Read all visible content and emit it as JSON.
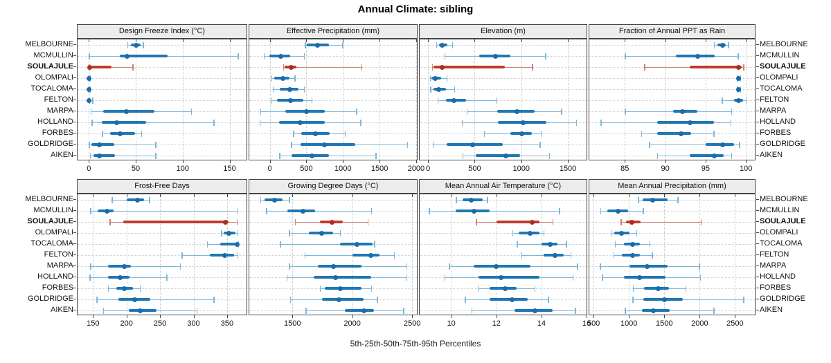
{
  "title": "Annual Climate: sibling",
  "caption": "5th-25th-50th-75th-95th Percentiles",
  "highlighted_site": "SOULAJULE",
  "colors": {
    "blue_dot": "#1b6ca8",
    "blue_thick": "#1f77b4",
    "blue_thin": "#7eb6d9",
    "red_dot": "#aa2e22",
    "red_thick": "#c0392b",
    "red_thin": "#d08076",
    "strip_bg": "#ececec",
    "panel_border": "#444444",
    "grid": "#c6c6c6"
  },
  "chart_data": {
    "type": "dot-whisker-trellis",
    "percentiles": [
      5,
      25,
      50,
      75,
      95
    ],
    "legend_note": "red series = highlighted site SOULAJULE, blue = other sites",
    "sites": [
      "MELBOURNE",
      "MCMULLIN",
      "SOULAJULE",
      "OLOMPALI",
      "TOCALOMA",
      "FELTON",
      "MARPA",
      "HOLLAND",
      "FORBES",
      "GOLDRIDGE",
      "AIKEN"
    ],
    "panels": [
      {
        "title": "Design Freeze Index (°C)",
        "row": 0,
        "col": 0,
        "domain": [
          -12,
          168
        ],
        "ticks": [
          0,
          50,
          100,
          150
        ],
        "series": [
          [
            41,
            45,
            50,
            55,
            58
          ],
          [
            0,
            33,
            41,
            84,
            159
          ],
          [
            0,
            0,
            1,
            24,
            47
          ],
          [
            0,
            0,
            0,
            0,
            1
          ],
          [
            0,
            0,
            0,
            0,
            1
          ],
          [
            0,
            0,
            0,
            1,
            4
          ],
          [
            2,
            15,
            40,
            70,
            109
          ],
          [
            3,
            14,
            30,
            61,
            133
          ],
          [
            14,
            23,
            33,
            49,
            56
          ],
          [
            0,
            3,
            11,
            27,
            71
          ],
          [
            1,
            5,
            11,
            28,
            71
          ]
        ]
      },
      {
        "title": "Effective Precipitation (mm)",
        "row": 0,
        "col": 1,
        "domain": [
          -280,
          2010
        ],
        "ticks": [
          0,
          500,
          1000,
          1500,
          2000
        ],
        "series": [
          [
            480,
            510,
            650,
            810,
            995
          ],
          [
            -85,
            -5,
            155,
            280,
            470
          ],
          [
            180,
            205,
            290,
            360,
            1255
          ],
          [
            20,
            65,
            180,
            270,
            340
          ],
          [
            40,
            140,
            270,
            395,
            470
          ],
          [
            10,
            95,
            280,
            460,
            575
          ],
          [
            -130,
            215,
            505,
            750,
            1185
          ],
          [
            -140,
            130,
            415,
            750,
            1240
          ],
          [
            320,
            425,
            620,
            815,
            1030
          ],
          [
            290,
            420,
            750,
            1165,
            1880
          ],
          [
            130,
            300,
            575,
            810,
            1450
          ]
        ]
      },
      {
        "title": "Elevation (m)",
        "row": 0,
        "col": 2,
        "domain": [
          -90,
          1700
        ],
        "ticks": [
          0,
          500,
          1000,
          1500
        ],
        "series": [
          [
            85,
            115,
            150,
            210,
            260
          ],
          [
            175,
            550,
            725,
            885,
            1260
          ],
          [
            40,
            60,
            150,
            820,
            1120
          ],
          [
            20,
            35,
            80,
            140,
            200
          ],
          [
            25,
            60,
            115,
            190,
            285
          ],
          [
            100,
            190,
            275,
            405,
            735
          ],
          [
            415,
            740,
            955,
            1140,
            1430
          ],
          [
            360,
            750,
            1020,
            1270,
            1590
          ],
          [
            600,
            885,
            1005,
            1115,
            1210
          ],
          [
            50,
            200,
            480,
            800,
            1200
          ],
          [
            370,
            510,
            835,
            990,
            1300
          ]
        ]
      },
      {
        "title": "Fraction of Annual PPT as Rain",
        "row": 0,
        "col": 3,
        "domain": [
          80.6,
          101.1
        ],
        "ticks": [
          85,
          90,
          95,
          100
        ],
        "series": [
          [
            96.0,
            96.5,
            97.1,
            97.5,
            97.8
          ],
          [
            85.0,
            91.3,
            94.0,
            96.1,
            99.0
          ],
          [
            87.4,
            93.0,
            99.1,
            99.5,
            99.7
          ],
          [
            98.9,
            99.0,
            99.1,
            99.2,
            99.3
          ],
          [
            98.9,
            99.0,
            99.1,
            99.2,
            99.3
          ],
          [
            97.0,
            98.5,
            99.1,
            99.6,
            100.0
          ],
          [
            85.0,
            91.0,
            92.1,
            94.0,
            98.2
          ],
          [
            82.0,
            89.0,
            93.1,
            96.0,
            98.1
          ],
          [
            87.0,
            89.0,
            92.0,
            93.2,
            96.0
          ],
          [
            88.0,
            95.0,
            97.1,
            98.5,
            99.2
          ],
          [
            89.0,
            93.0,
            96.1,
            97.2,
            98.2
          ]
        ]
      },
      {
        "title": "Frost-Free Days",
        "row": 1,
        "col": 0,
        "domain": [
          127,
          379
        ],
        "ticks": [
          150,
          200,
          250,
          300,
          350
        ],
        "series": [
          [
            178,
            200,
            216,
            226,
            234
          ],
          [
            146,
            157,
            171,
            181,
            366
          ],
          [
            175,
            195,
            347,
            352,
            365
          ],
          [
            341,
            345,
            353,
            362,
            366
          ],
          [
            320,
            340,
            365,
            366,
            367
          ],
          [
            282,
            324,
            346,
            360,
            366
          ],
          [
            146,
            172,
            197,
            207,
            280
          ],
          [
            145,
            172,
            191,
            204,
            260
          ],
          [
            172,
            185,
            197,
            210,
            220
          ],
          [
            155,
            188,
            212,
            235,
            330
          ],
          [
            165,
            203,
            220,
            245,
            305
          ]
        ]
      },
      {
        "title": "Growing Degree Days (°C)",
        "row": 1,
        "col": 1,
        "domain": [
          1140,
          2540
        ],
        "ticks": [
          1500,
          2000,
          2500
        ],
        "series": [
          [
            1230,
            1265,
            1350,
            1420,
            1475
          ],
          [
            1280,
            1460,
            1590,
            1690,
            2160
          ],
          [
            1520,
            1730,
            1830,
            1920,
            2130
          ],
          [
            1470,
            1635,
            1745,
            1840,
            1900
          ],
          [
            1395,
            1895,
            2040,
            2170,
            2185
          ],
          [
            1600,
            2000,
            2155,
            2225,
            2350
          ],
          [
            1470,
            1710,
            1840,
            2075,
            2455
          ],
          [
            1450,
            1680,
            1860,
            2160,
            2455
          ],
          [
            1730,
            1770,
            1900,
            2075,
            2160
          ],
          [
            1480,
            1750,
            1890,
            2095,
            2210
          ],
          [
            1610,
            1940,
            2100,
            2180,
            2430
          ]
        ]
      },
      {
        "title": "Mean Annual Air Temperature (°C)",
        "row": 1,
        "col": 2,
        "domain": [
          8.6,
          16.0
        ],
        "ticks": [
          10,
          12,
          14,
          16
        ],
        "series": [
          [
            10.2,
            10.5,
            10.9,
            11.4,
            11.6
          ],
          [
            9.0,
            10.2,
            11.0,
            11.7,
            14.8
          ],
          [
            11.1,
            12.0,
            13.6,
            13.9,
            14.5
          ],
          [
            12.7,
            13.0,
            13.5,
            13.9,
            14.1
          ],
          [
            12.9,
            14.0,
            14.4,
            14.7,
            15.1
          ],
          [
            13.1,
            14.1,
            14.6,
            15.0,
            15.3
          ],
          [
            9.9,
            11.0,
            12.0,
            13.5,
            15.6
          ],
          [
            9.7,
            11.2,
            12.2,
            13.9,
            15.4
          ],
          [
            11.2,
            11.7,
            12.4,
            12.9,
            13.7
          ],
          [
            10.6,
            11.7,
            12.7,
            13.4,
            14.3
          ],
          [
            10.9,
            12.8,
            13.7,
            14.5,
            15.5
          ]
        ]
      },
      {
        "title": "Mean Annual Precipitation (mm)",
        "row": 1,
        "col": 3,
        "domain": [
          440,
          2780
        ],
        "ticks": [
          500,
          1000,
          1500,
          2000,
          2500
        ],
        "series": [
          [
            1130,
            1190,
            1340,
            1545,
            1690
          ],
          [
            595,
            695,
            845,
            985,
            1200
          ],
          [
            885,
            955,
            1045,
            1160,
            2030
          ],
          [
            750,
            790,
            900,
            1010,
            1110
          ],
          [
            800,
            930,
            1055,
            1150,
            1295
          ],
          [
            780,
            900,
            1055,
            1150,
            1330
          ],
          [
            590,
            1010,
            1255,
            1550,
            1995
          ],
          [
            620,
            930,
            1145,
            1520,
            2010
          ],
          [
            1055,
            1215,
            1415,
            1565,
            1805
          ],
          [
            1050,
            1200,
            1500,
            1760,
            2620
          ],
          [
            940,
            1185,
            1350,
            1580,
            2200
          ]
        ]
      }
    ]
  }
}
